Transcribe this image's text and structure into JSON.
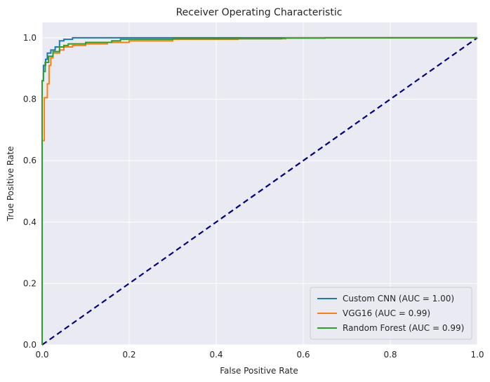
{
  "chart_data": {
    "type": "line",
    "title": "Receiver Operating Characteristic",
    "xlabel": "False Positive Rate",
    "ylabel": "True Positive Rate",
    "xlim": [
      0,
      1
    ],
    "ylim": [
      0,
      1.05
    ],
    "xticks": [
      "0.0",
      "0.2",
      "0.4",
      "0.6",
      "0.8",
      "1.0"
    ],
    "yticks": [
      "0.0",
      "0.2",
      "0.4",
      "0.6",
      "0.8",
      "1.0"
    ],
    "grid": true,
    "legend_position": "lower-right",
    "background": "#eaeaf2",
    "series": [
      {
        "name": "Custom CNN (AUC = 1.00)",
        "color": "#1f77b4",
        "points": [
          [
            0,
            0
          ],
          [
            0,
            0.86
          ],
          [
            0.003,
            0.86
          ],
          [
            0.003,
            0.91
          ],
          [
            0.008,
            0.91
          ],
          [
            0.008,
            0.93
          ],
          [
            0.012,
            0.93
          ],
          [
            0.012,
            0.95
          ],
          [
            0.02,
            0.95
          ],
          [
            0.02,
            0.96
          ],
          [
            0.03,
            0.96
          ],
          [
            0.03,
            0.97
          ],
          [
            0.04,
            0.97
          ],
          [
            0.04,
            0.99
          ],
          [
            0.05,
            0.99
          ],
          [
            0.05,
            0.995
          ],
          [
            0.07,
            0.995
          ],
          [
            0.07,
            1.0
          ],
          [
            1.0,
            1.0
          ]
        ]
      },
      {
        "name": "VGG16 (AUC = 0.99)",
        "color": "#ff7f0e",
        "points": [
          [
            0,
            0
          ],
          [
            0,
            0.665
          ],
          [
            0.005,
            0.665
          ],
          [
            0.005,
            0.805
          ],
          [
            0.012,
            0.805
          ],
          [
            0.012,
            0.85
          ],
          [
            0.016,
            0.85
          ],
          [
            0.016,
            0.91
          ],
          [
            0.02,
            0.91
          ],
          [
            0.02,
            0.935
          ],
          [
            0.025,
            0.935
          ],
          [
            0.025,
            0.95
          ],
          [
            0.04,
            0.95
          ],
          [
            0.04,
            0.96
          ],
          [
            0.05,
            0.96
          ],
          [
            0.05,
            0.97
          ],
          [
            0.07,
            0.97
          ],
          [
            0.07,
            0.975
          ],
          [
            0.1,
            0.975
          ],
          [
            0.1,
            0.98
          ],
          [
            0.15,
            0.98
          ],
          [
            0.15,
            0.985
          ],
          [
            0.2,
            0.985
          ],
          [
            0.2,
            0.99
          ],
          [
            0.3,
            0.99
          ],
          [
            0.3,
            0.995
          ],
          [
            0.45,
            0.995
          ],
          [
            0.45,
            0.997
          ],
          [
            0.56,
            0.997
          ],
          [
            0.56,
            1.0
          ],
          [
            1.0,
            1.0
          ]
        ]
      },
      {
        "name": "Random Forest (AUC = 0.99)",
        "color": "#2ca02c",
        "points": [
          [
            0,
            0
          ],
          [
            0,
            0.86
          ],
          [
            0.003,
            0.86
          ],
          [
            0.003,
            0.89
          ],
          [
            0.007,
            0.89
          ],
          [
            0.007,
            0.92
          ],
          [
            0.015,
            0.92
          ],
          [
            0.015,
            0.94
          ],
          [
            0.025,
            0.94
          ],
          [
            0.025,
            0.955
          ],
          [
            0.04,
            0.955
          ],
          [
            0.04,
            0.97
          ],
          [
            0.05,
            0.97
          ],
          [
            0.05,
            0.975
          ],
          [
            0.06,
            0.975
          ],
          [
            0.06,
            0.98
          ],
          [
            0.1,
            0.98
          ],
          [
            0.1,
            0.985
          ],
          [
            0.16,
            0.985
          ],
          [
            0.16,
            0.99
          ],
          [
            0.18,
            0.99
          ],
          [
            0.18,
            0.995
          ],
          [
            0.3,
            0.995
          ],
          [
            0.3,
            0.997
          ],
          [
            0.55,
            0.997
          ],
          [
            0.55,
            0.999
          ],
          [
            0.65,
            0.999
          ],
          [
            0.65,
            1.0
          ],
          [
            1.0,
            1.0
          ]
        ]
      }
    ],
    "reference_line": {
      "style": "dashed",
      "color": "#000080",
      "points": [
        [
          0,
          0
        ],
        [
          1,
          1
        ]
      ]
    }
  }
}
